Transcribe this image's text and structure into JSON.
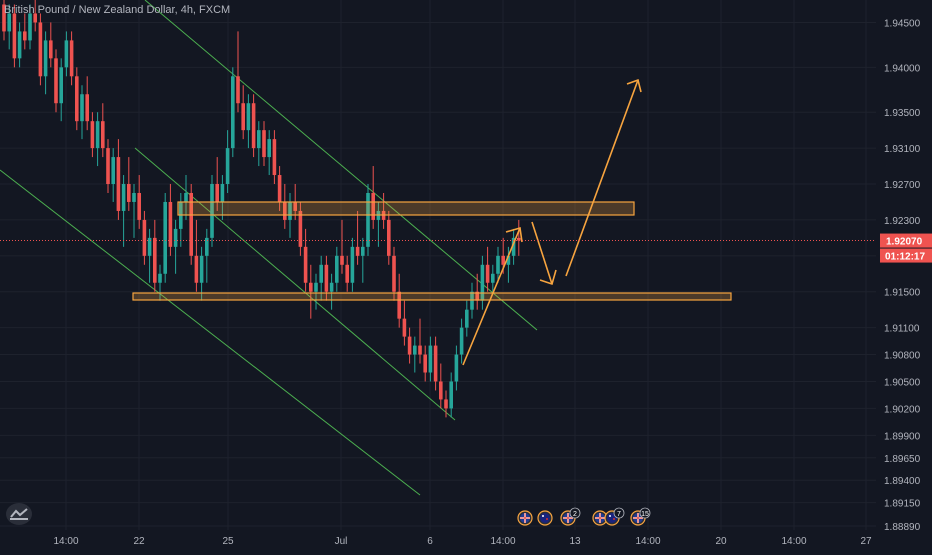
{
  "chart_title": "British Pound / New Zealand Dollar, 4h, FXCM",
  "colors": {
    "background": "#131722",
    "grid": "#1e222d",
    "up": "#26a69a",
    "down": "#ef5350",
    "drawing": "#f7a43f",
    "channel": "#4caf50",
    "axis_text": "#b2b5be",
    "price_tag": "#ef5350"
  },
  "price_axis": {
    "ticks": [
      "1.94500",
      "1.94000",
      "1.93500",
      "1.93100",
      "1.92700",
      "1.92300",
      "1.91900",
      "1.91500",
      "1.91100",
      "1.90800",
      "1.90500",
      "1.90200",
      "1.89900",
      "1.89650",
      "1.89400",
      "1.89150",
      "1.88890"
    ],
    "current_price": "1.92070",
    "countdown": "01:12:17"
  },
  "time_axis": {
    "ticks": [
      "14:00",
      "22",
      "25",
      "Jul",
      "6",
      "14:00",
      "13",
      "14:00",
      "20",
      "14:00",
      "27"
    ]
  },
  "event_markers": [
    {
      "icon": "uk-flag-icon",
      "count": ""
    },
    {
      "icon": "nz-flag-icon",
      "count": ""
    },
    {
      "icon": "uk-flag-icon",
      "count": "2"
    },
    {
      "icon": "uk-flag-icon",
      "count": ""
    },
    {
      "icon": "nz-flag-icon",
      "count": "7"
    },
    {
      "icon": "uk-flag-icon",
      "count": "15"
    }
  ],
  "chart_data": {
    "type": "candlestick",
    "title": "British Pound / New Zealand Dollar, 4h, FXCM",
    "ylim": [
      1.8889,
      1.9475
    ],
    "grid": true,
    "annotations": [
      "resistance zone 1.9244–1.9258",
      "support zone 1.9152–1.9160",
      "projected path: rise to ~1.924, pullback to ~1.917, breakout to ~1.941"
    ],
    "candles": [
      [
        1.947,
        1.948,
        1.943,
        1.944
      ],
      [
        1.944,
        1.947,
        1.942,
        1.946
      ],
      [
        1.946,
        1.947,
        1.94,
        1.941
      ],
      [
        1.941,
        1.945,
        1.94,
        1.944
      ],
      [
        1.944,
        1.946,
        1.942,
        1.943
      ],
      [
        1.943,
        1.947,
        1.942,
        1.946
      ],
      [
        1.946,
        1.9475,
        1.944,
        1.945
      ],
      [
        1.945,
        1.946,
        1.938,
        1.939
      ],
      [
        1.939,
        1.944,
        1.937,
        1.943
      ],
      [
        1.943,
        1.945,
        1.94,
        1.941
      ],
      [
        1.941,
        1.942,
        1.935,
        1.936
      ],
      [
        1.936,
        1.941,
        1.934,
        1.94
      ],
      [
        1.94,
        1.944,
        1.939,
        1.943
      ],
      [
        1.943,
        1.944,
        1.938,
        1.939
      ],
      [
        1.939,
        1.94,
        1.933,
        1.934
      ],
      [
        1.934,
        1.938,
        1.932,
        1.937
      ],
      [
        1.937,
        1.939,
        1.933,
        1.934
      ],
      [
        1.934,
        1.935,
        1.93,
        1.931
      ],
      [
        1.931,
        1.935,
        1.929,
        1.934
      ],
      [
        1.934,
        1.936,
        1.93,
        1.931
      ],
      [
        1.931,
        1.932,
        1.926,
        1.927
      ],
      [
        1.927,
        1.931,
        1.925,
        1.93
      ],
      [
        1.93,
        1.932,
        1.923,
        1.924
      ],
      [
        1.924,
        1.928,
        1.92,
        1.927
      ],
      [
        1.927,
        1.93,
        1.924,
        1.925
      ],
      [
        1.925,
        1.927,
        1.921,
        1.926
      ],
      [
        1.926,
        1.928,
        1.922,
        1.923
      ],
      [
        1.923,
        1.924,
        1.918,
        1.919
      ],
      [
        1.919,
        1.922,
        1.916,
        1.921
      ],
      [
        1.921,
        1.923,
        1.915,
        1.916
      ],
      [
        1.916,
        1.918,
        1.914,
        1.917
      ],
      [
        1.917,
        1.926,
        1.916,
        1.925
      ],
      [
        1.925,
        1.927,
        1.919,
        1.92
      ],
      [
        1.92,
        1.923,
        1.917,
        1.922
      ],
      [
        1.922,
        1.926,
        1.92,
        1.925
      ],
      [
        1.925,
        1.928,
        1.923,
        1.926
      ],
      [
        1.926,
        1.927,
        1.918,
        1.919
      ],
      [
        1.919,
        1.923,
        1.915,
        1.916
      ],
      [
        1.916,
        1.92,
        1.914,
        1.919
      ],
      [
        1.919,
        1.922,
        1.916,
        1.921
      ],
      [
        1.921,
        1.928,
        1.92,
        1.927
      ],
      [
        1.927,
        1.93,
        1.924,
        1.925
      ],
      [
        1.925,
        1.928,
        1.923,
        1.927
      ],
      [
        1.927,
        1.933,
        1.926,
        1.931
      ],
      [
        1.931,
        1.94,
        1.93,
        1.939
      ],
      [
        1.939,
        1.944,
        1.935,
        1.936
      ],
      [
        1.936,
        1.938,
        1.932,
        1.933
      ],
      [
        1.933,
        1.937,
        1.931,
        1.936
      ],
      [
        1.936,
        1.937,
        1.93,
        1.931
      ],
      [
        1.931,
        1.934,
        1.929,
        1.933
      ],
      [
        1.933,
        1.934,
        1.929,
        1.93
      ],
      [
        1.93,
        1.933,
        1.928,
        1.932
      ],
      [
        1.932,
        1.933,
        1.927,
        1.928
      ],
      [
        1.928,
        1.929,
        1.924,
        1.925
      ],
      [
        1.925,
        1.927,
        1.922,
        1.923
      ],
      [
        1.923,
        1.926,
        1.921,
        1.925
      ],
      [
        1.925,
        1.927,
        1.923,
        1.924
      ],
      [
        1.924,
        1.925,
        1.919,
        1.92
      ],
      [
        1.92,
        1.922,
        1.915,
        1.916
      ],
      [
        1.916,
        1.918,
        1.912,
        1.915
      ],
      [
        1.915,
        1.917,
        1.913,
        1.916
      ],
      [
        1.916,
        1.919,
        1.914,
        1.918
      ],
      [
        1.918,
        1.919,
        1.914,
        1.915
      ],
      [
        1.915,
        1.917,
        1.913,
        1.916
      ],
      [
        1.916,
        1.92,
        1.915,
        1.919
      ],
      [
        1.919,
        1.923,
        1.917,
        1.918
      ],
      [
        1.918,
        1.919,
        1.915,
        1.916
      ],
      [
        1.916,
        1.921,
        1.915,
        1.92
      ],
      [
        1.92,
        1.924,
        1.918,
        1.919
      ],
      [
        1.919,
        1.921,
        1.916,
        1.92
      ],
      [
        1.92,
        1.927,
        1.919,
        1.926
      ],
      [
        1.926,
        1.929,
        1.922,
        1.923
      ],
      [
        1.923,
        1.925,
        1.92,
        1.924
      ],
      [
        1.924,
        1.926,
        1.922,
        1.923
      ],
      [
        1.923,
        1.924,
        1.918,
        1.919
      ],
      [
        1.919,
        1.92,
        1.914,
        1.915
      ],
      [
        1.915,
        1.917,
        1.911,
        1.912
      ],
      [
        1.912,
        1.914,
        1.909,
        1.91
      ],
      [
        1.91,
        1.911,
        1.907,
        1.908
      ],
      [
        1.908,
        1.91,
        1.906,
        1.909
      ],
      [
        1.909,
        1.912,
        1.907,
        1.908
      ],
      [
        1.908,
        1.909,
        1.905,
        1.906
      ],
      [
        1.906,
        1.91,
        1.905,
        1.909
      ],
      [
        1.909,
        1.91,
        1.904,
        1.905
      ],
      [
        1.905,
        1.907,
        1.902,
        1.903
      ],
      [
        1.903,
        1.904,
        1.901,
        1.902
      ],
      [
        1.902,
        1.906,
        1.901,
        1.905
      ],
      [
        1.905,
        1.909,
        1.904,
        1.908
      ],
      [
        1.908,
        1.912,
        1.907,
        1.911
      ],
      [
        1.911,
        1.914,
        1.91,
        1.913
      ],
      [
        1.913,
        1.916,
        1.912,
        1.915
      ],
      [
        1.915,
        1.917,
        1.913,
        1.914
      ],
      [
        1.914,
        1.919,
        1.913,
        1.918
      ],
      [
        1.918,
        1.92,
        1.915,
        1.916
      ],
      [
        1.916,
        1.918,
        1.915,
        1.917
      ],
      [
        1.917,
        1.92,
        1.916,
        1.919
      ],
      [
        1.919,
        1.921,
        1.917,
        1.918
      ],
      [
        1.918,
        1.92,
        1.916,
        1.919
      ],
      [
        1.919,
        1.922,
        1.918,
        1.921
      ],
      [
        1.921,
        1.923,
        1.919,
        1.9207
      ]
    ]
  }
}
